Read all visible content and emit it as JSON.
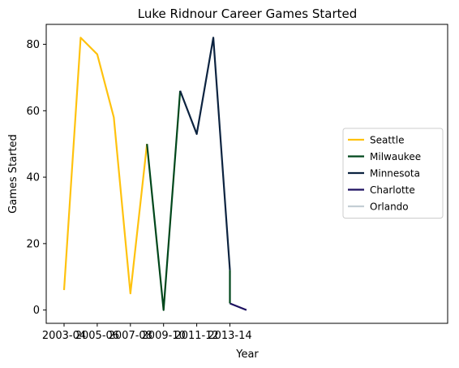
{
  "chart_data": {
    "type": "line",
    "title": "Luke Ridnour Career Games Started",
    "xlabel": "Year",
    "ylabel": "Games Started",
    "x_tick_labels": [
      "2003-04",
      "2005-06",
      "2007-08",
      "2009-10",
      "2011-12",
      "2013-14"
    ],
    "y_ticks": [
      0,
      20,
      40,
      60,
      80
    ],
    "ylim": [
      -4,
      86
    ],
    "grid": false,
    "legend_position": "center-right",
    "series": [
      {
        "name": "Seattle",
        "color": "#ffc20e",
        "points": [
          [
            "2003-04",
            6
          ],
          [
            "2004-05",
            82
          ],
          [
            "2005-06",
            77
          ],
          [
            "2006-07",
            58
          ],
          [
            "2007-08",
            5
          ],
          [
            "2008-09",
            50
          ]
        ]
      },
      {
        "name": "Milwaukee",
        "color": "#00471b",
        "points": [
          [
            "2008-09",
            50
          ],
          [
            "2009-10",
            0
          ],
          [
            "2010-11",
            66
          ]
        ]
      },
      {
        "name": "Minnesota",
        "color": "#0c2340",
        "points": [
          [
            "2010-11",
            66
          ],
          [
            "2011-12",
            53
          ],
          [
            "2012-13",
            82
          ],
          [
            "2013-14",
            12
          ]
        ]
      },
      {
        "name": "Charlotte",
        "color": "#1d1160",
        "points": [
          [
            "2013-14",
            2
          ],
          [
            "2014-15",
            0
          ]
        ]
      },
      {
        "name": "Orlando",
        "color": "#c4ced4",
        "points": []
      },
      {
        "name": "",
        "color": "#00471b",
        "points": [
          [
            "2013-14",
            12
          ],
          [
            "2013-14",
            2
          ]
        ]
      }
    ]
  }
}
